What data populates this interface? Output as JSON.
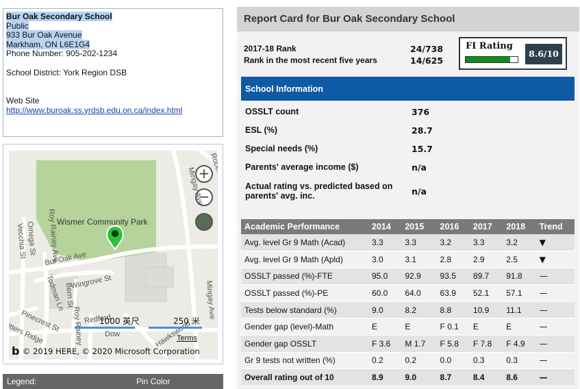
{
  "school": {
    "name": "Bur Oak Secondary School",
    "type": "Public",
    "address_line1": "933 Bur Oak Avenue",
    "address_line2": "Markham, ON L6E1G4",
    "phone": "Phone Number: 905-202-1234",
    "district": "School District: York Region DSB",
    "website_label": "Web Site",
    "website_url": "http://www.buroak.ss.yrdsb.edu.on.ca/index.html"
  },
  "map": {
    "labels": {
      "park": "Wismer Community Park",
      "bur_oak_ave": "Bur Oak Ave",
      "wingrove": "Wingrove St",
      "mingay_top": "Mingay Ave",
      "mingay_bottom": "Mingay Ave",
      "roy_rainey": "Roy Rainey Ave",
      "omega": "Omega St",
      "vecchia": "Vecchia St",
      "todman": "Todman Ln",
      "bern": "Bern St",
      "pinecrest": "Pinecrest St",
      "fitters": "Fitters Ridge",
      "robert": "Robert St",
      "roy": "Roy Rainey",
      "redford": "Redford",
      "dow": "Dow",
      "hawkswood": "Hawkswood"
    },
    "scale_ft": "1000 英尺",
    "scale_m": "250 米",
    "terms": "Terms",
    "copyright": "© 2019 HERE, © 2020 Microsoft Corporation",
    "logo": "b"
  },
  "legend": {
    "label": "Legend:",
    "pin_color": "Pin Color"
  },
  "report": {
    "title": "Report Card for Bur Oak Secondary School",
    "rank_label": "2017-18 Rank",
    "rank_value": "24/738",
    "rank5_label": "Rank in the most recent five years",
    "rank5_value": "14/625",
    "fi_label": "FI Rating",
    "fi_score": "8.6/10",
    "fi_fraction": 0.86,
    "info_title": "School Information",
    "info": [
      {
        "label": "OSSLT count",
        "value": "376"
      },
      {
        "label": "ESL (%)",
        "value": "28.7"
      },
      {
        "label": "Special needs (%)",
        "value": "15.7"
      },
      {
        "label": "Parents' average income ($)",
        "value": "n/a"
      },
      {
        "label": "Actual rating vs. predicted based on parents' avg. inc.",
        "value": "n/a"
      }
    ],
    "perf_headers": [
      "Academic Performance",
      "2014",
      "2015",
      "2016",
      "2017",
      "2018",
      "Trend"
    ],
    "perf_rows": [
      [
        "Avg. level Gr 9 Math (Acad)",
        "3.3",
        "3.3",
        "3.2",
        "3.3",
        "3.2",
        "▼"
      ],
      [
        "Avg. level Gr 9 Math (Apld)",
        "3.0",
        "3.1",
        "2.8",
        "2.9",
        "2.5",
        "▼"
      ],
      [
        "OSSLT passed (%)-FTE",
        "95.0",
        "92.9",
        "93.5",
        "89.7",
        "91.8",
        "—"
      ],
      [
        "OSSLT passed (%)-PE",
        "60.0",
        "64.0",
        "63.9",
        "52.1",
        "57.1",
        "—"
      ],
      [
        "Tests below standard (%)",
        "9.0",
        "8.2",
        "8.8",
        "10.9",
        "11.1",
        "—"
      ],
      [
        "Gender gap (level)-Math",
        "E",
        "E",
        "F 0.1",
        "E",
        "E",
        "—"
      ],
      [
        "Gender gap OSSLT",
        "F 3.6",
        "M 1.7",
        "F 5.8",
        "F 7.8",
        "F 4.9",
        "—"
      ],
      [
        "Gr 9 tests not written (%)",
        "0.2",
        "0.2",
        "0.0",
        "0.3",
        "0.3",
        "—"
      ],
      [
        "Overall rating out of 10",
        "8.9",
        "9.0",
        "8.7",
        "8.4",
        "8.6",
        "—"
      ]
    ]
  },
  "colors": {
    "info_header": "#0f5aa5",
    "perf_header": "#7a7a7a",
    "fi_bar": "#118a1a",
    "fi_score_bg": "#2e3f4e",
    "park": "#b5d39a",
    "pin": "#2fbf3a"
  }
}
